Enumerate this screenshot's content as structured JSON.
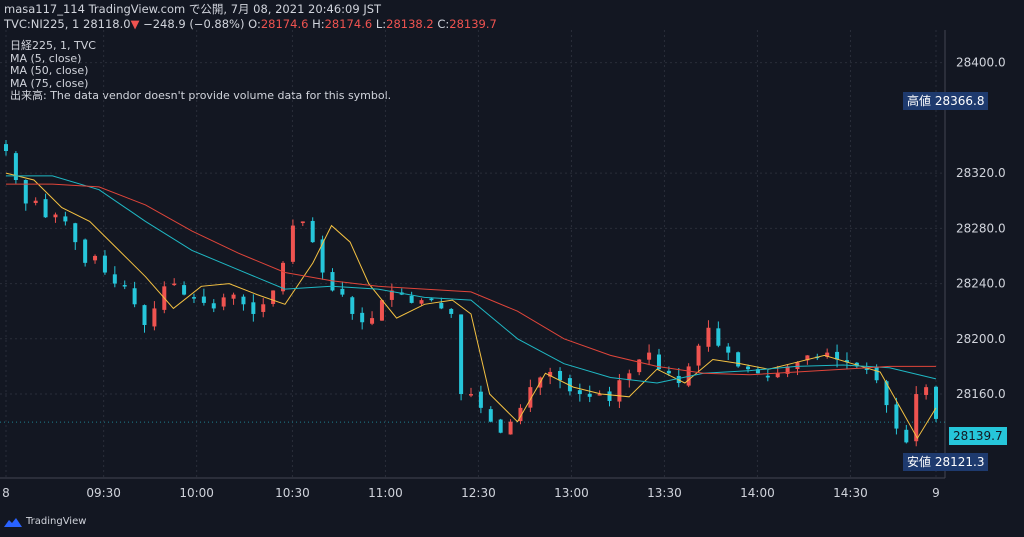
{
  "header": {
    "line1": "masa117_114 TradingView.com で公開, 7月 08, 2021 20:46:09 JST",
    "symbol": "TVC:NI225, 1",
    "last": "28118.0",
    "arrow": "▼",
    "change": "−248.9 (−0.88%)",
    "o_label": "O:",
    "o_val": "28174.6",
    "h_label": "H:",
    "h_val": "28174.6",
    "l_label": "L:",
    "l_val": "28138.2",
    "c_label": "C:",
    "c_val": "28139.7"
  },
  "legend": {
    "title": "日経225, 1, TVC",
    "ma5": "MA (5, close)",
    "ma50": "MA (50, close)",
    "ma75": "MA (75, close)",
    "volume": "出来高: The data vendor doesn't provide volume data for this symbol."
  },
  "price_tags": {
    "high_label": "高値",
    "high_value": "28366.8",
    "low_label": "安値",
    "low_value": "28121.3",
    "last_value": "28139.7"
  },
  "brand": {
    "name": "TradingView"
  },
  "colors": {
    "background": "#131722",
    "up": "#ef5350",
    "down": "#26c6da",
    "ma5": "#f5c242",
    "ma50": "#1fb8c4",
    "ma75": "#e0453a",
    "grid": "#2a2e39"
  },
  "chart_data": {
    "type": "line",
    "title": "日経225, 1, TVC",
    "xlabel": "",
    "ylabel": "",
    "ylim": [
      28105,
      28420
    ],
    "y_ticks": [
      28160,
      28200,
      28240,
      28280,
      28320,
      28400
    ],
    "y_tick_labels": [
      "28160.0",
      "28200.0",
      "28240.0",
      "28280.0",
      "28320.0",
      "28400.0"
    ],
    "x_ticks": [
      "8",
      "09:30",
      "10:00",
      "10:30",
      "11:00",
      "12:30",
      "13:00",
      "13:30",
      "14:00",
      "14:30",
      "9"
    ],
    "x_tick_pos": [
      0,
      0.105,
      0.205,
      0.308,
      0.408,
      0.508,
      0.608,
      0.708,
      0.808,
      0.908,
      1.0
    ],
    "series": [
      {
        "name": "MA (5, close)",
        "x": [
          0,
          0.03,
          0.06,
          0.09,
          0.12,
          0.15,
          0.18,
          0.21,
          0.24,
          0.27,
          0.3,
          0.33,
          0.35,
          0.37,
          0.39,
          0.42,
          0.45,
          0.48,
          0.5,
          0.52,
          0.55,
          0.58,
          0.61,
          0.64,
          0.67,
          0.7,
          0.73,
          0.76,
          0.79,
          0.82,
          0.85,
          0.88,
          0.91,
          0.94,
          0.96,
          0.98,
          1.0
        ],
        "values": [
          28320,
          28315,
          28295,
          28285,
          28265,
          28245,
          28222,
          28238,
          28240,
          28232,
          28225,
          28255,
          28282,
          28270,
          28240,
          28215,
          28225,
          28228,
          28218,
          28160,
          28140,
          28175,
          28165,
          28160,
          28158,
          28178,
          28168,
          28185,
          28182,
          28178,
          28183,
          28188,
          28182,
          28176,
          28152,
          28128,
          28150
        ]
      },
      {
        "name": "MA (50, close)",
        "x": [
          0,
          0.05,
          0.1,
          0.15,
          0.2,
          0.25,
          0.3,
          0.35,
          0.4,
          0.45,
          0.5,
          0.55,
          0.6,
          0.65,
          0.7,
          0.75,
          0.8,
          0.85,
          0.9,
          0.95,
          1.0
        ],
        "values": [
          28318,
          28318,
          28308,
          28285,
          28264,
          28250,
          28236,
          28238,
          28236,
          28230,
          28228,
          28200,
          28182,
          28172,
          28168,
          28175,
          28177,
          28180,
          28181,
          28179,
          28171
        ]
      },
      {
        "name": "MA (75, close)",
        "x": [
          0,
          0.05,
          0.1,
          0.15,
          0.2,
          0.25,
          0.3,
          0.35,
          0.4,
          0.45,
          0.5,
          0.55,
          0.6,
          0.65,
          0.7,
          0.75,
          0.8,
          0.85,
          0.9,
          0.95,
          1.0
        ],
        "values": [
          28312,
          28312,
          28310,
          28297,
          28278,
          28262,
          28248,
          28242,
          28238,
          28236,
          28234,
          28220,
          28200,
          28188,
          28180,
          28175,
          28174,
          28176,
          28178,
          28180,
          28180
        ]
      }
    ],
    "candles_path": [
      28336,
      28315,
      28298,
      28300,
      28288,
      28290,
      28285,
      28270,
      28255,
      28260,
      28248,
      28240,
      28238,
      28225,
      28210,
      28222,
      28238,
      28240,
      28232,
      28230,
      28226,
      28222,
      28230,
      28232,
      28225,
      28218,
      28225,
      28235,
      28255,
      28282,
      28285,
      28270,
      28248,
      28235,
      28232,
      28218,
      28212,
      28215,
      28228,
      28235,
      28232,
      28226,
      28228,
      28228,
      28222,
      28218,
      28160,
      28160,
      28150,
      28140,
      28132,
      28140,
      28150,
      28165,
      28172,
      28176,
      28170,
      28162,
      28160,
      28158,
      28160,
      28155,
      28170,
      28175,
      28185,
      28190,
      28178,
      28175,
      28168,
      28180,
      28195,
      28208,
      28195,
      28190,
      28180,
      28178,
      28175,
      28172,
      28175,
      28180,
      28183,
      28188,
      28186,
      28190,
      28185,
      28183,
      28180,
      28178,
      28170,
      28152,
      28135,
      28125,
      28160,
      28165,
      28142
    ]
  }
}
